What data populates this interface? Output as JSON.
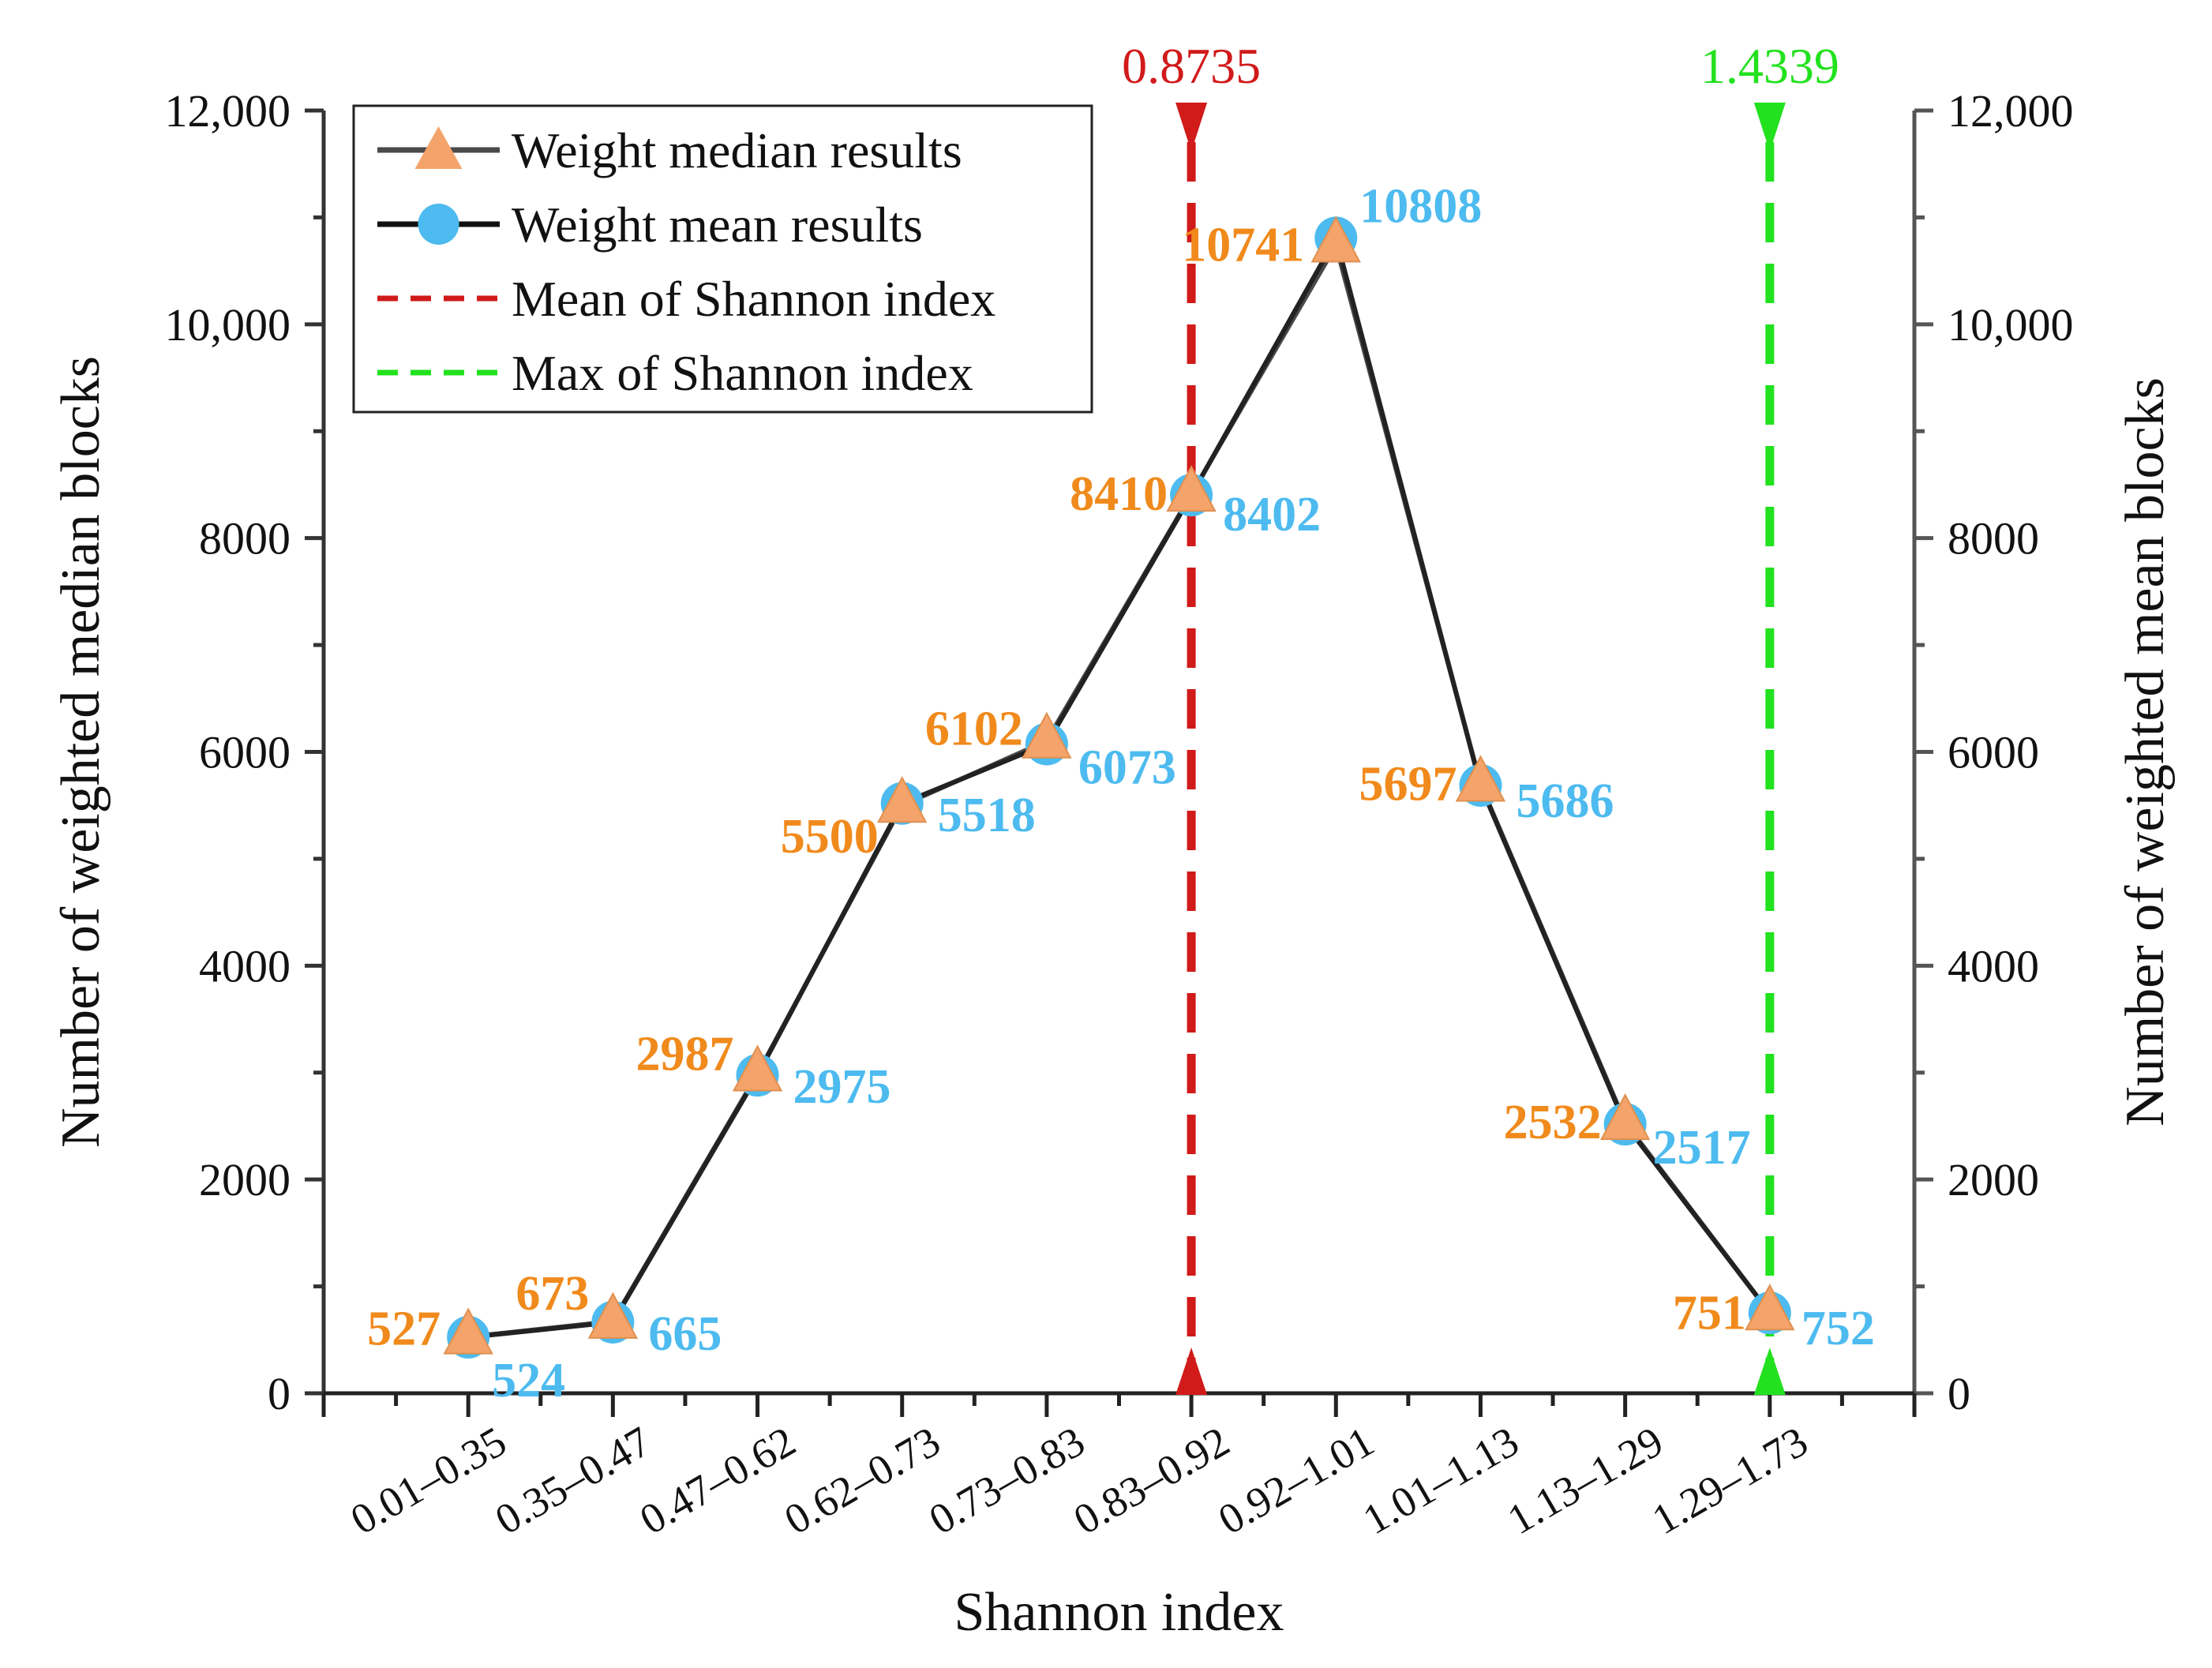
{
  "chart_data": {
    "type": "line",
    "xlabel": "Shannon index",
    "ylabel_left": "Number of weighted median blocks",
    "ylabel_right": "Number of weighted mean blocks",
    "ylim": [
      0,
      12000
    ],
    "yticks": [
      0,
      2000,
      4000,
      6000,
      8000,
      10000,
      12000
    ],
    "ytick_labels": [
      "0",
      "2000",
      "4000",
      "6000",
      "8000",
      "10,000",
      "12,000"
    ],
    "categories": [
      "0.01–0.35",
      "0.35–0.47",
      "0.47–0.62",
      "0.62–0.73",
      "0.73–0.83",
      "0.83–0.92",
      "0.92–1.01",
      "1.01–1.13",
      "1.13–1.29",
      "1.29–1.73"
    ],
    "series": [
      {
        "name": "Weight median results",
        "marker": "triangle",
        "color": "#f4a46a",
        "label_color": "#f08a1c",
        "values": [
          527,
          673,
          2987,
          5500,
          6102,
          8410,
          10741,
          5697,
          2532,
          751
        ]
      },
      {
        "name": "Weight mean results",
        "marker": "circle",
        "color": "#4dbbef",
        "label_color": "#4dbbef",
        "values": [
          524,
          665,
          2975,
          5518,
          6073,
          8402,
          10808,
          5686,
          2517,
          752
        ]
      }
    ],
    "reference_lines": [
      {
        "name": "Mean of Shannon index",
        "value": 0.8735,
        "label": "0.8735",
        "color": "#d11a1a",
        "category_index": 5
      },
      {
        "name": "Max of Shannon index",
        "value": 1.4339,
        "label": "1.4339",
        "color": "#22e11e",
        "category_index": 9
      }
    ],
    "legend_position": "top-left",
    "line_color": "#4a4a4a"
  }
}
